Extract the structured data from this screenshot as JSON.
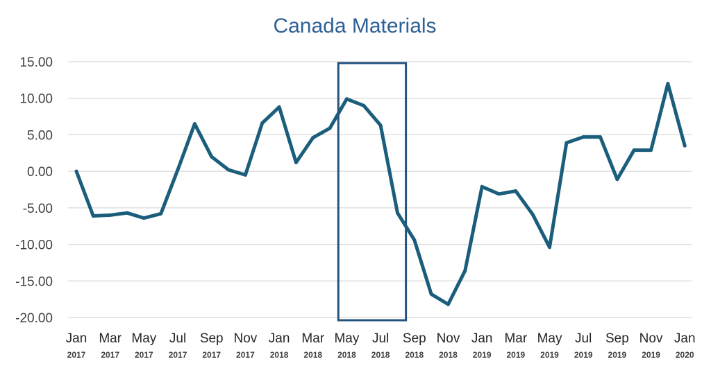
{
  "colors": {
    "title": "#2e6096",
    "line": "#1b5e7c",
    "grid": "#d9d9d9",
    "box": "#24537e"
  },
  "chart_data": {
    "type": "line",
    "title": "Canada Materials",
    "xlabel": "",
    "ylabel": "",
    "ylim": [
      -20,
      15
    ],
    "yticks": [
      "15.00",
      "10.00",
      "5.00",
      "0.00",
      "-5.00",
      "-10.00",
      "-15.00",
      "-20.00"
    ],
    "grid": true,
    "legend": "none",
    "x_tick_labels": [
      {
        "month": "Jan",
        "year": "2017"
      },
      {
        "month": "Mar",
        "year": "2017"
      },
      {
        "month": "May",
        "year": "2017"
      },
      {
        "month": "Jul",
        "year": "2017"
      },
      {
        "month": "Sep",
        "year": "2017"
      },
      {
        "month": "Nov",
        "year": "2017"
      },
      {
        "month": "Jan",
        "year": "2018"
      },
      {
        "month": "Mar",
        "year": "2018"
      },
      {
        "month": "May",
        "year": "2018"
      },
      {
        "month": "Jul",
        "year": "2018"
      },
      {
        "month": "Sep",
        "year": "2018"
      },
      {
        "month": "Nov",
        "year": "2018"
      },
      {
        "month": "Jan",
        "year": "2019"
      },
      {
        "month": "Mar",
        "year": "2019"
      },
      {
        "month": "May",
        "year": "2019"
      },
      {
        "month": "Jul",
        "year": "2019"
      },
      {
        "month": "Sep",
        "year": "2019"
      },
      {
        "month": "Nov",
        "year": "2019"
      },
      {
        "month": "Jan",
        "year": "2020"
      }
    ],
    "x": [
      "2017-01",
      "2017-02",
      "2017-03",
      "2017-04",
      "2017-05",
      "2017-06",
      "2017-07",
      "2017-08",
      "2017-09",
      "2017-10",
      "2017-11",
      "2017-12",
      "2018-01",
      "2018-02",
      "2018-03",
      "2018-04",
      "2018-05",
      "2018-06",
      "2018-07",
      "2018-08",
      "2018-09",
      "2018-10",
      "2018-11",
      "2018-12",
      "2019-01",
      "2019-02",
      "2019-03",
      "2019-04",
      "2019-05",
      "2019-06",
      "2019-07",
      "2019-08",
      "2019-09",
      "2019-10",
      "2019-11",
      "2019-12",
      "2020-01"
    ],
    "series": [
      {
        "values": [
          0.0,
          -6.1,
          -6.0,
          -5.7,
          -6.4,
          -5.8,
          0.2,
          6.5,
          2.0,
          0.2,
          -0.5,
          6.6,
          8.8,
          1.2,
          4.6,
          5.9,
          9.9,
          9.0,
          6.3,
          -5.7,
          -9.4,
          -16.8,
          -18.2,
          -13.6,
          -2.1,
          -3.1,
          -2.7,
          -5.9,
          -10.4,
          3.9,
          4.7,
          4.7,
          -1.1,
          2.9,
          2.9,
          12.0,
          3.5
        ]
      }
    ],
    "highlight_range": [
      "2018-05",
      "2018-08"
    ]
  }
}
